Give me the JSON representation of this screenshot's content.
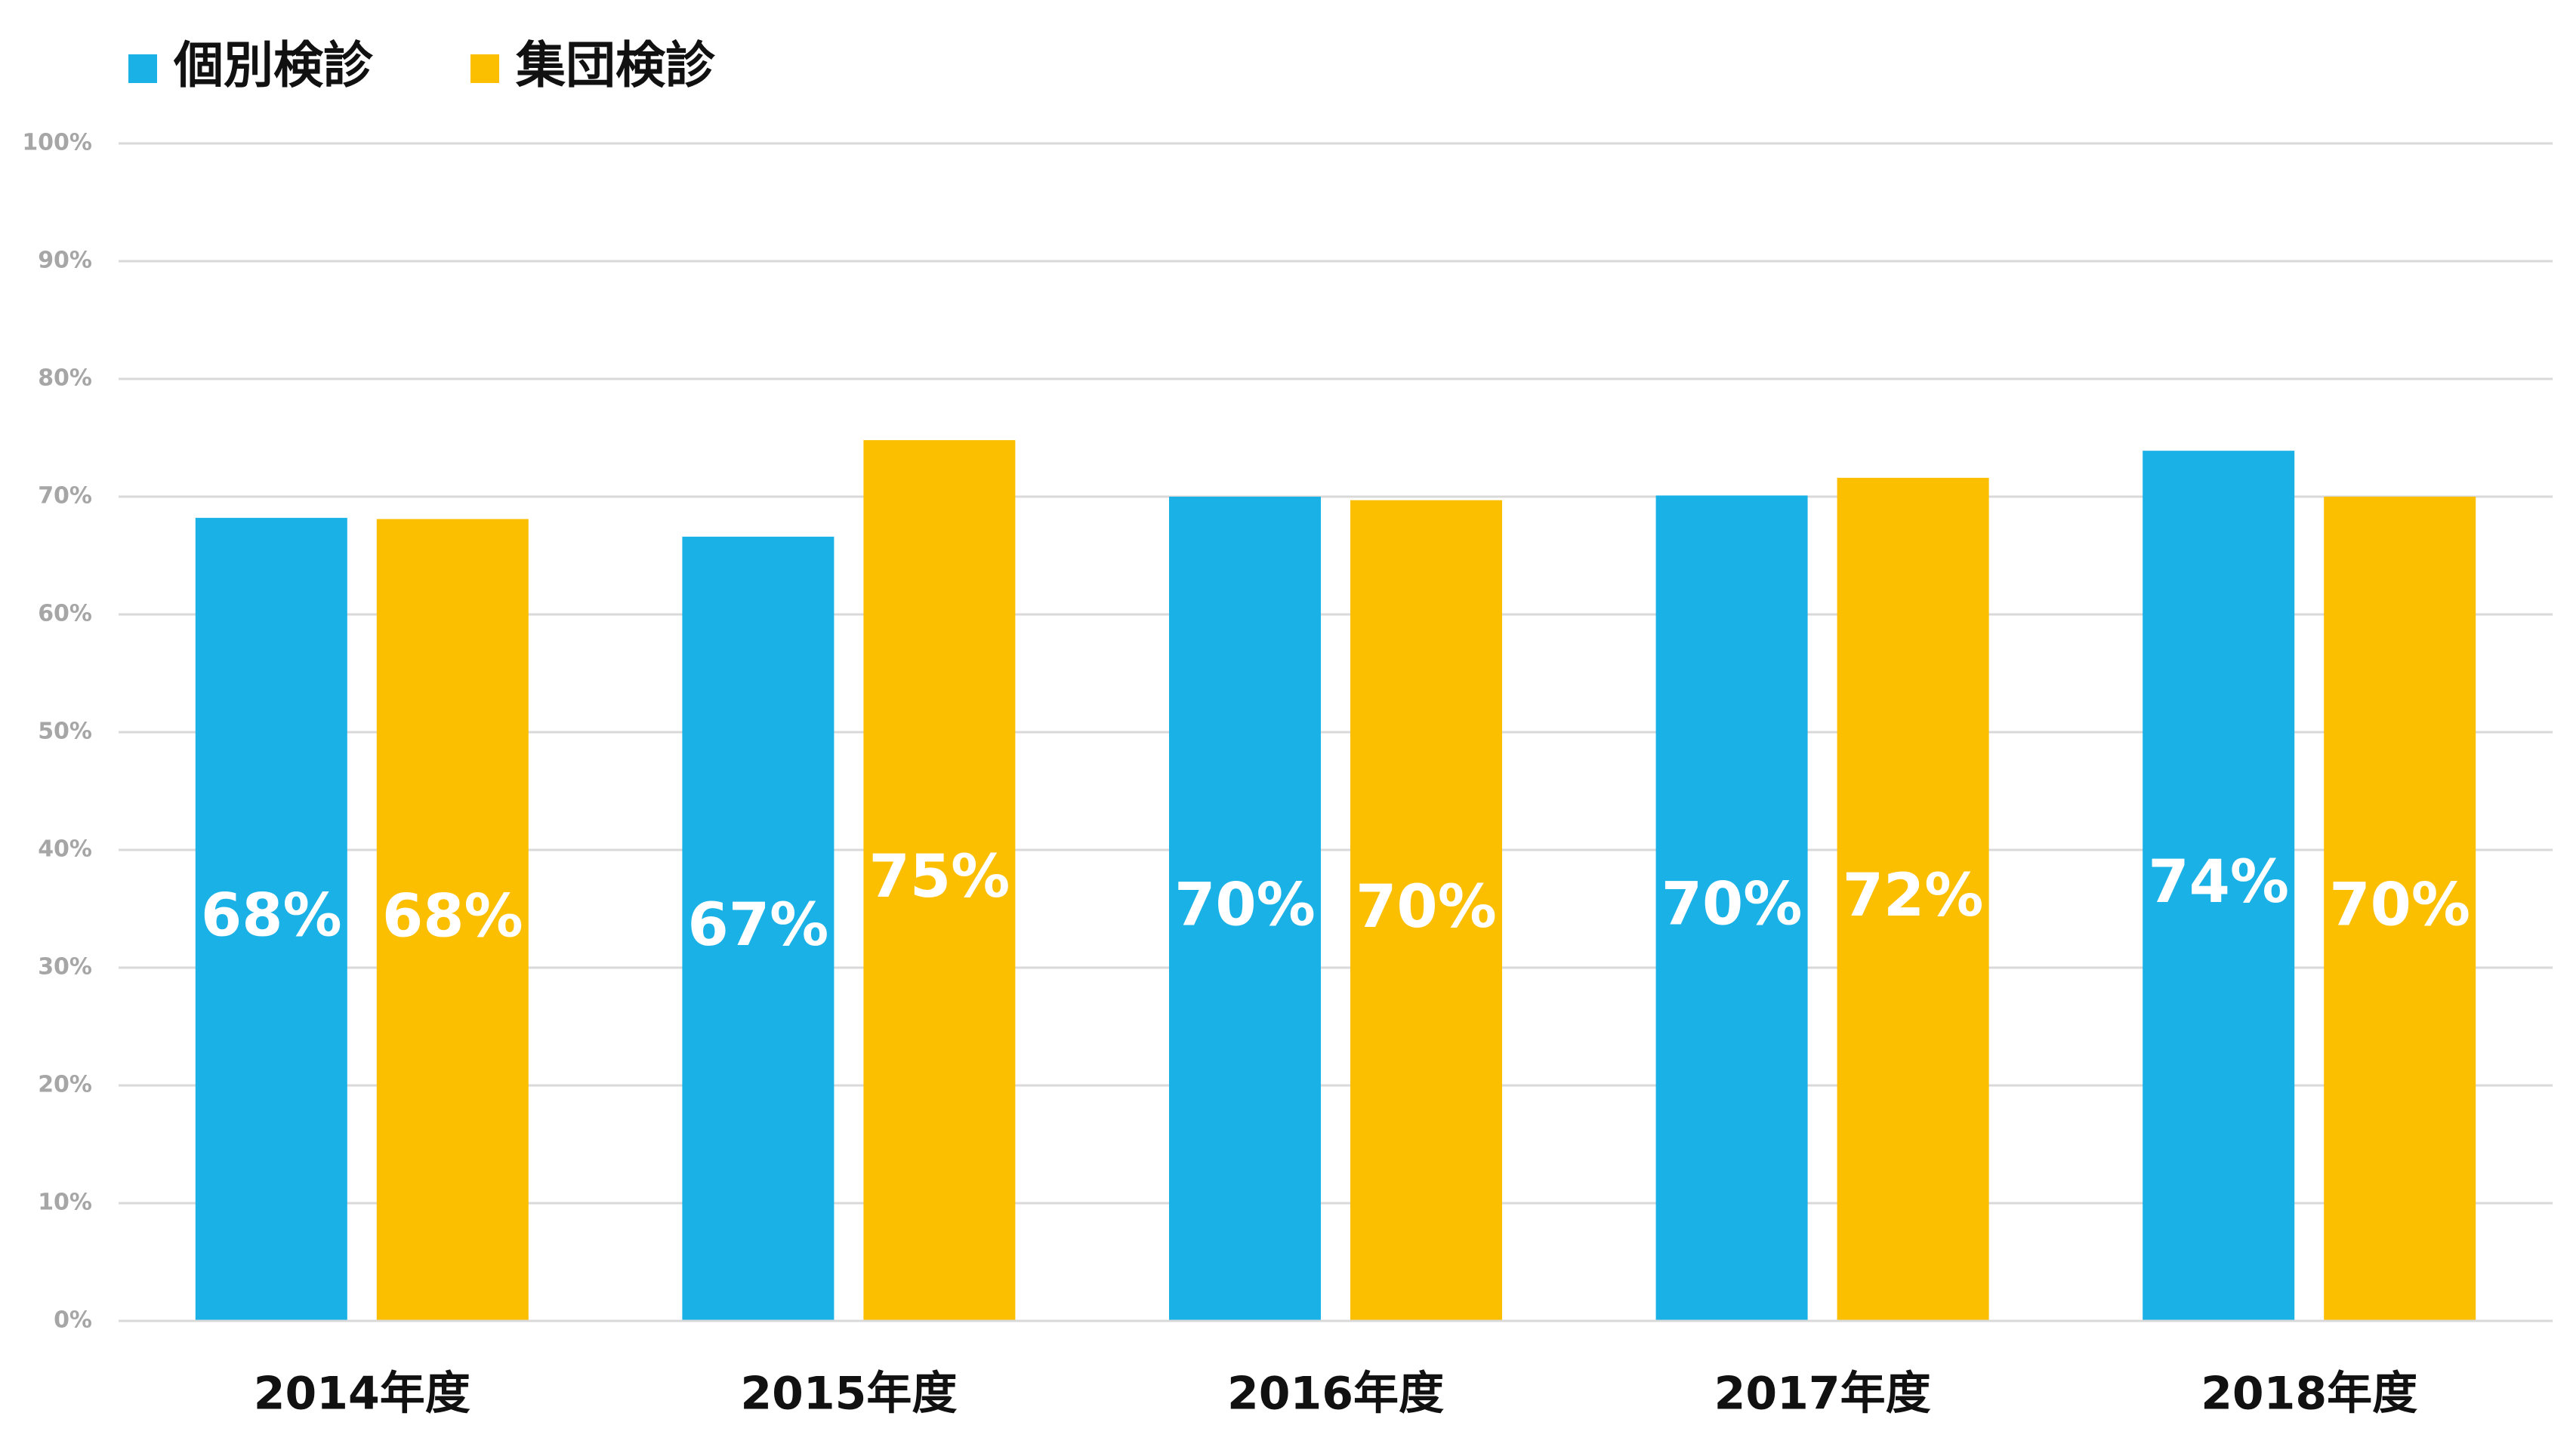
{
  "chart_data": {
    "type": "bar",
    "categories": [
      "2014年度",
      "2015年度",
      "2016年度",
      "2017年度",
      "2018年度"
    ],
    "series": [
      {
        "name": "個別検診",
        "color": "#1ab1e6",
        "values": [
          68.2,
          66.6,
          70.0,
          70.1,
          73.9
        ],
        "value_labels": [
          "68%",
          "67%",
          "70%",
          "70%",
          "74%"
        ]
      },
      {
        "name": "集団検診",
        "color": "#fcbf00",
        "values": [
          68.1,
          74.8,
          69.7,
          71.6,
          70.0
        ],
        "value_labels": [
          "68%",
          "75%",
          "70%",
          "72%",
          "70%"
        ]
      }
    ],
    "ylim": [
      0,
      100
    ],
    "yticks": [
      {
        "value": 0,
        "label": "0%"
      },
      {
        "value": 10,
        "label": "10%"
      },
      {
        "value": 20,
        "label": "20%"
      },
      {
        "value": 30,
        "label": "30%"
      },
      {
        "value": 40,
        "label": "40%"
      },
      {
        "value": 50,
        "label": "50%"
      },
      {
        "value": 60,
        "label": "60%"
      },
      {
        "value": 70,
        "label": "70%"
      },
      {
        "value": 80,
        "label": "80%"
      },
      {
        "value": 90,
        "label": "90%"
      },
      {
        "value": 100,
        "label": "100%"
      }
    ],
    "grid": true,
    "legend": "top-left"
  }
}
